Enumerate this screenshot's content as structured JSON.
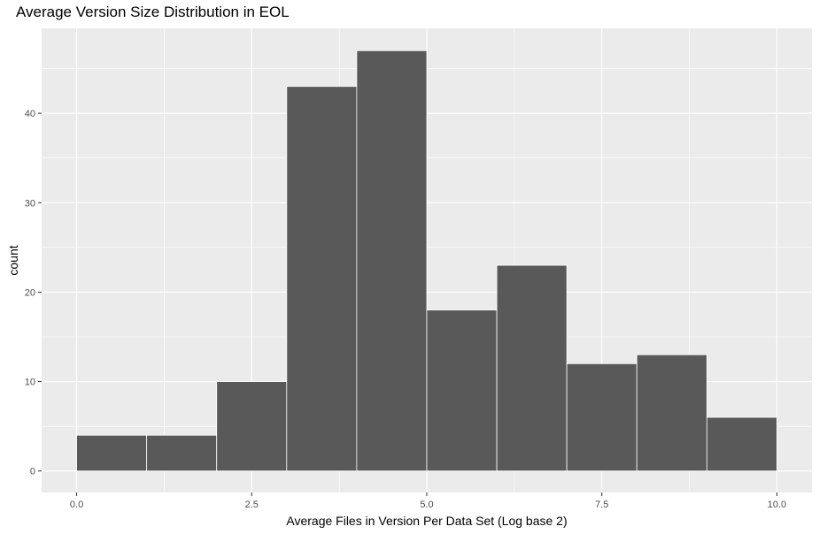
{
  "chart_data": {
    "type": "bar",
    "title": "Average Version Size Distribution in EOL",
    "xlabel": "Average Files in Version Per Data Set (Log base 2)",
    "ylabel": "count",
    "xlim": [
      -0.5,
      10.5
    ],
    "ylim": [
      -2.4,
      49.5
    ],
    "x_ticks": [
      0,
      2.5,
      5,
      7.5,
      10
    ],
    "x_tick_labels": [
      "0.0",
      "2.5",
      "5.0",
      "7.5",
      "10.0"
    ],
    "y_ticks": [
      0,
      10,
      20,
      30,
      40
    ],
    "y_tick_labels": [
      "0",
      "10",
      "20",
      "30",
      "40"
    ],
    "bins": [
      {
        "x0": 0,
        "x1": 1,
        "count": 4
      },
      {
        "x0": 1,
        "x1": 2,
        "count": 4
      },
      {
        "x0": 2,
        "x1": 3,
        "count": 10
      },
      {
        "x0": 3,
        "x1": 4,
        "count": 43
      },
      {
        "x0": 4,
        "x1": 5,
        "count": 47
      },
      {
        "x0": 5,
        "x1": 6,
        "count": 18
      },
      {
        "x0": 6,
        "x1": 7,
        "count": 23
      },
      {
        "x0": 7,
        "x1": 8,
        "count": 12
      },
      {
        "x0": 8,
        "x1": 9,
        "count": 13
      },
      {
        "x0": 9,
        "x1": 10,
        "count": 6
      }
    ],
    "grid": true,
    "colors": {
      "panel": "#ebebeb",
      "grid_major": "#ffffff",
      "bar_fill": "#595959",
      "bar_outline": "#ffffff"
    }
  }
}
